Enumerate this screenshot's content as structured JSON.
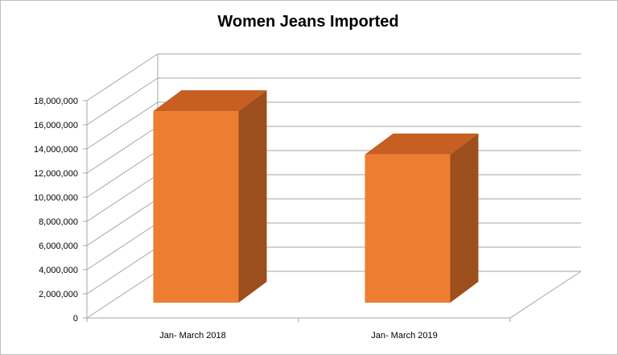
{
  "chart_data": {
    "type": "bar",
    "title": "Women Jeans Imported",
    "xlabel": "",
    "ylabel": "",
    "categories": [
      "Jan- March 2018",
      "Jan- March 2019"
    ],
    "values": [
      16600000,
      12850000
    ],
    "ylim": [
      0,
      18000000
    ],
    "yticks": [
      "0",
      "2,000,000",
      "4,000,000",
      "6,000,000",
      "8,000,000",
      "10,000,000",
      "12,000,000",
      "14,000,000",
      "16,000,000",
      "18,000,000"
    ],
    "grid": true,
    "legend": "none",
    "style": "3d-column",
    "colors": {
      "front": "#ED7D31",
      "top": "#C65F21",
      "side": "#9C4E1C",
      "grid": "#a6a6a6"
    }
  }
}
